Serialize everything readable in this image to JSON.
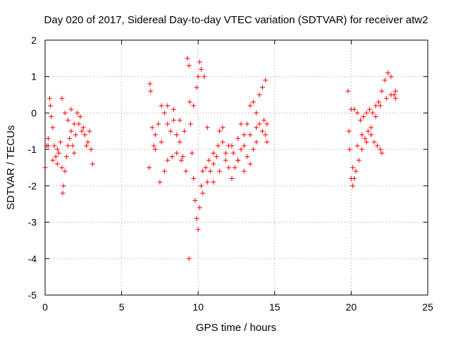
{
  "chart_data": {
    "type": "scatter",
    "title": "Day 020 of 2017, Sidereal Day-to-day VTEC variation (SDTVAR) for receiver atw2",
    "xlabel": "GPS time / hours",
    "ylabel": "SDTVAR / TECUs",
    "xlim": [
      0,
      25
    ],
    "ylim": [
      -5,
      2
    ],
    "xticks": [
      0,
      5,
      10,
      15,
      20,
      25
    ],
    "yticks": [
      -5,
      -4,
      -3,
      -2,
      -1,
      0,
      1,
      2
    ],
    "grid": true,
    "marker": "plus",
    "color": "#ff0000",
    "series": [
      {
        "points": [
          [
            0.0,
            -1.5
          ],
          [
            0.1,
            -0.9
          ],
          [
            0.2,
            -0.7
          ],
          [
            0.3,
            0.4
          ],
          [
            0.35,
            0.2
          ],
          [
            0.4,
            -0.1
          ],
          [
            0.5,
            -0.4
          ],
          [
            0.6,
            -0.9
          ],
          [
            0.7,
            -1.2
          ],
          [
            0.8,
            -1.4
          ],
          [
            0.9,
            -1.1
          ],
          [
            1.0,
            -0.8
          ],
          [
            1.1,
            -1.5
          ],
          [
            1.15,
            -2.2
          ],
          [
            1.2,
            -2.0
          ],
          [
            1.3,
            -1.6
          ],
          [
            1.4,
            -1.2
          ],
          [
            1.5,
            -0.9
          ],
          [
            1.6,
            -0.7
          ],
          [
            1.7,
            -0.5
          ],
          [
            1.8,
            -0.9
          ],
          [
            1.9,
            -1.1
          ],
          [
            2.0,
            -0.6
          ],
          [
            2.2,
            -0.3
          ],
          [
            2.4,
            -0.5
          ],
          [
            2.6,
            -0.6
          ],
          [
            2.8,
            -0.8
          ],
          [
            3.0,
            -1.0
          ],
          [
            3.1,
            -1.4
          ],
          [
            0.2,
            -0.9
          ],
          [
            0.5,
            -1.3
          ],
          [
            0.8,
            -1.0
          ],
          [
            1.1,
            0.4
          ],
          [
            1.3,
            0.0
          ],
          [
            1.5,
            -0.2
          ],
          [
            1.7,
            0.1
          ],
          [
            1.9,
            -0.3
          ],
          [
            2.1,
            0.0
          ],
          [
            2.3,
            -0.1
          ],
          [
            2.5,
            -0.4
          ],
          [
            2.7,
            -0.9
          ],
          [
            2.9,
            -0.5
          ]
        ]
      },
      {
        "points": [
          [
            6.8,
            -1.5
          ],
          [
            6.85,
            0.8
          ],
          [
            6.9,
            0.6
          ],
          [
            7.0,
            -0.4
          ],
          [
            7.1,
            -0.9
          ],
          [
            7.2,
            -0.6
          ],
          [
            7.4,
            -0.3
          ],
          [
            7.6,
            0.2
          ],
          [
            7.8,
            0.0
          ],
          [
            8.0,
            -0.3
          ],
          [
            8.2,
            -0.5
          ],
          [
            8.4,
            -0.2
          ],
          [
            8.6,
            -0.6
          ],
          [
            8.8,
            -0.8
          ],
          [
            9.0,
            -1.2
          ],
          [
            9.2,
            -1.6
          ],
          [
            9.3,
            1.5
          ],
          [
            9.4,
            1.3
          ],
          [
            9.45,
            0.3
          ],
          [
            9.5,
            -0.3
          ],
          [
            9.6,
            -1.1
          ],
          [
            9.7,
            -1.8
          ],
          [
            9.8,
            -2.4
          ],
          [
            9.9,
            -2.9
          ],
          [
            10.0,
            -3.2
          ],
          [
            10.1,
            -2.6
          ],
          [
            10.2,
            -2.0
          ],
          [
            10.3,
            -1.6
          ],
          [
            10.5,
            -1.5
          ],
          [
            10.7,
            -1.3
          ],
          [
            11.0,
            -1.1
          ],
          [
            11.3,
            -0.9
          ],
          [
            11.6,
            -0.8
          ],
          [
            12.0,
            -0.9
          ],
          [
            12.3,
            -1.1
          ],
          [
            12.6,
            -1.3
          ],
          [
            12.8,
            -1.0
          ],
          [
            13.0,
            -0.6
          ],
          [
            13.2,
            -0.3
          ],
          [
            13.4,
            0.2
          ],
          [
            13.6,
            0.3
          ],
          [
            13.8,
            0.0
          ],
          [
            14.0,
            -0.3
          ],
          [
            14.2,
            -0.5
          ],
          [
            14.4,
            -0.6
          ],
          [
            14.5,
            -0.8
          ],
          [
            7.5,
            -1.9
          ],
          [
            7.8,
            -1.6
          ],
          [
            8.0,
            -1.3
          ],
          [
            8.3,
            -1.2
          ],
          [
            8.6,
            -1.1
          ],
          [
            8.9,
            -1.3
          ],
          [
            9.4,
            -4.0
          ],
          [
            9.7,
            0.2
          ],
          [
            9.9,
            0.7
          ],
          [
            10.0,
            1.0
          ],
          [
            10.1,
            1.4
          ],
          [
            10.2,
            1.2
          ],
          [
            10.4,
            1.0
          ],
          [
            10.6,
            -0.4
          ],
          [
            10.8,
            -1.6
          ],
          [
            11.0,
            -1.4
          ],
          [
            11.2,
            -1.2
          ],
          [
            11.4,
            -0.5
          ],
          [
            11.6,
            -0.4
          ],
          [
            11.8,
            -1.3
          ],
          [
            12.0,
            -1.5
          ],
          [
            12.2,
            -1.8
          ],
          [
            12.4,
            -1.5
          ],
          [
            12.6,
            -0.7
          ],
          [
            12.8,
            -0.3
          ],
          [
            13.0,
            -0.9
          ],
          [
            13.2,
            -1.2
          ],
          [
            13.4,
            -1.4
          ],
          [
            13.6,
            -1.0
          ],
          [
            13.8,
            -0.8
          ],
          [
            14.0,
            0.5
          ],
          [
            14.2,
            0.7
          ],
          [
            14.4,
            0.9
          ],
          [
            14.5,
            -0.3
          ],
          [
            7.2,
            -1.0
          ],
          [
            7.6,
            -0.8
          ],
          [
            8.0,
            0.2
          ],
          [
            8.4,
            0.1
          ],
          [
            8.8,
            -0.2
          ],
          [
            9.1,
            -0.5
          ],
          [
            10.3,
            -2.2
          ],
          [
            10.6,
            -1.9
          ],
          [
            11.0,
            -1.9
          ],
          [
            11.4,
            -1.6
          ],
          [
            11.8,
            -1.1
          ],
          [
            12.2,
            -0.9
          ],
          [
            12.6,
            -1.3
          ],
          [
            13.0,
            -1.6
          ],
          [
            13.4,
            -0.6
          ],
          [
            13.8,
            -0.4
          ],
          [
            14.3,
            -0.2
          ]
        ]
      },
      {
        "points": [
          [
            19.8,
            0.6
          ],
          [
            19.85,
            -0.5
          ],
          [
            19.9,
            -1.0
          ],
          [
            20.0,
            -1.8
          ],
          [
            20.1,
            -2.0
          ],
          [
            20.2,
            -1.8
          ],
          [
            20.3,
            -1.6
          ],
          [
            20.5,
            -1.3
          ],
          [
            20.7,
            -1.0
          ],
          [
            20.9,
            -0.7
          ],
          [
            21.1,
            -0.5
          ],
          [
            21.3,
            -0.6
          ],
          [
            21.5,
            -0.8
          ],
          [
            21.7,
            -0.9
          ],
          [
            21.9,
            -1.0
          ],
          [
            22.0,
            -1.1
          ],
          [
            20.0,
            0.1
          ],
          [
            20.2,
            0.1
          ],
          [
            20.4,
            0.0
          ],
          [
            20.6,
            -0.2
          ],
          [
            20.8,
            -0.1
          ],
          [
            21.0,
            0.0
          ],
          [
            21.2,
            0.1
          ],
          [
            21.4,
            0.0
          ],
          [
            21.6,
            0.2
          ],
          [
            21.8,
            0.3
          ],
          [
            22.0,
            0.6
          ],
          [
            22.2,
            0.9
          ],
          [
            22.4,
            1.1
          ],
          [
            22.6,
            1.0
          ],
          [
            22.8,
            0.5
          ],
          [
            22.9,
            0.4
          ],
          [
            20.1,
            -1.5
          ],
          [
            20.4,
            -0.9
          ],
          [
            20.7,
            -0.6
          ],
          [
            21.0,
            -0.8
          ],
          [
            21.3,
            -0.4
          ],
          [
            21.6,
            -0.1
          ],
          [
            21.9,
            0.2
          ],
          [
            22.3,
            0.4
          ],
          [
            22.6,
            0.5
          ],
          [
            22.9,
            0.6
          ]
        ]
      }
    ]
  }
}
